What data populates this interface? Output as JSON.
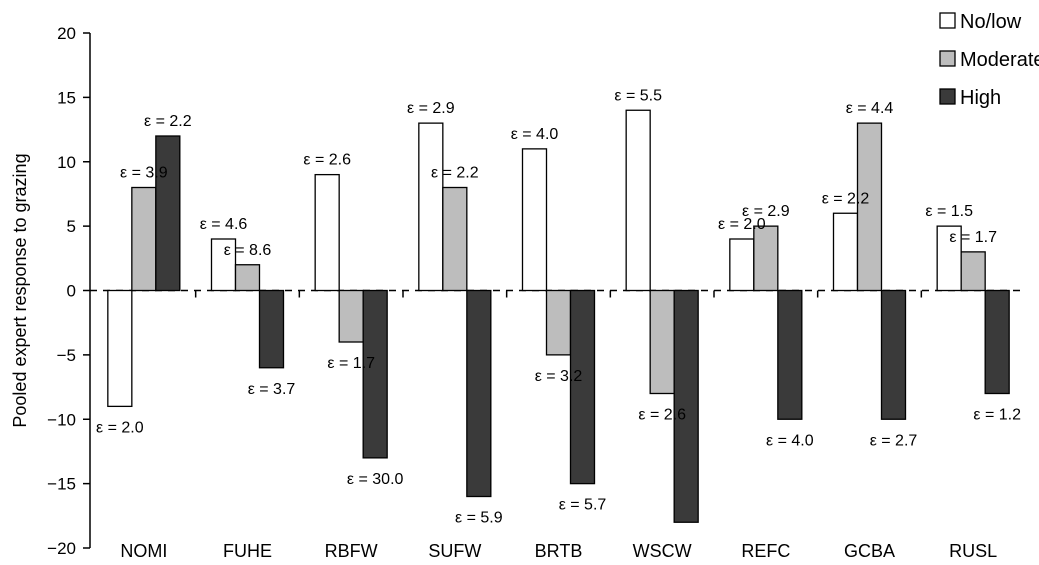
{
  "chart_data": {
    "type": "bar",
    "ylabel": "Pooled expert response to grazing",
    "xlabel": "",
    "ylim": [
      -20,
      20
    ],
    "yticks": [
      20,
      15,
      10,
      5,
      0,
      -5,
      -10,
      -15,
      -20
    ],
    "ytick_labels": [
      "20",
      "15",
      "10",
      "5",
      "0",
      "−5",
      "−10",
      "−15",
      "−20"
    ],
    "categories": [
      "NOMI",
      "FUHE",
      "RBFW",
      "SUFW",
      "BRTB",
      "WSCW",
      "REFC",
      "GCBA",
      "RUSL"
    ],
    "legend_position": "top-right",
    "series": [
      {
        "name": "No/low",
        "color": "#ffffff",
        "values": [
          -9,
          4,
          9,
          13,
          11,
          14,
          4,
          6,
          5
        ],
        "labels": [
          "ε = 2.0",
          "ε = 4.6",
          "ε = 2.6",
          "ε = 2.9",
          "ε = 4.0",
          "ε = 5.5",
          "ε = 2.0",
          "ε = 2.2",
          "ε = 1.5"
        ]
      },
      {
        "name": "Moderate",
        "color": "#bdbdbd",
        "values": [
          8,
          2,
          -4,
          8,
          -5,
          -8,
          5,
          13,
          3
        ],
        "labels": [
          "ε = 3.9",
          "ε = 8.6",
          "ε = 1.7",
          "ε = 2.2",
          "ε = 3.2",
          "ε = 2.6",
          "ε = 2.9",
          "ε = 4.4",
          "ε = 1.7"
        ]
      },
      {
        "name": "High",
        "color": "#3a3a3a",
        "values": [
          12,
          -6,
          -13,
          -16,
          -15,
          -18,
          -10,
          -10,
          -8
        ],
        "labels": [
          "ε = 2.2",
          "ε = 3.7",
          "ε = 30.0",
          "ε = 5.9",
          "ε = 5.7",
          "",
          "ε = 4.0",
          "ε = 2.7",
          "ε = 1.2"
        ]
      }
    ]
  }
}
